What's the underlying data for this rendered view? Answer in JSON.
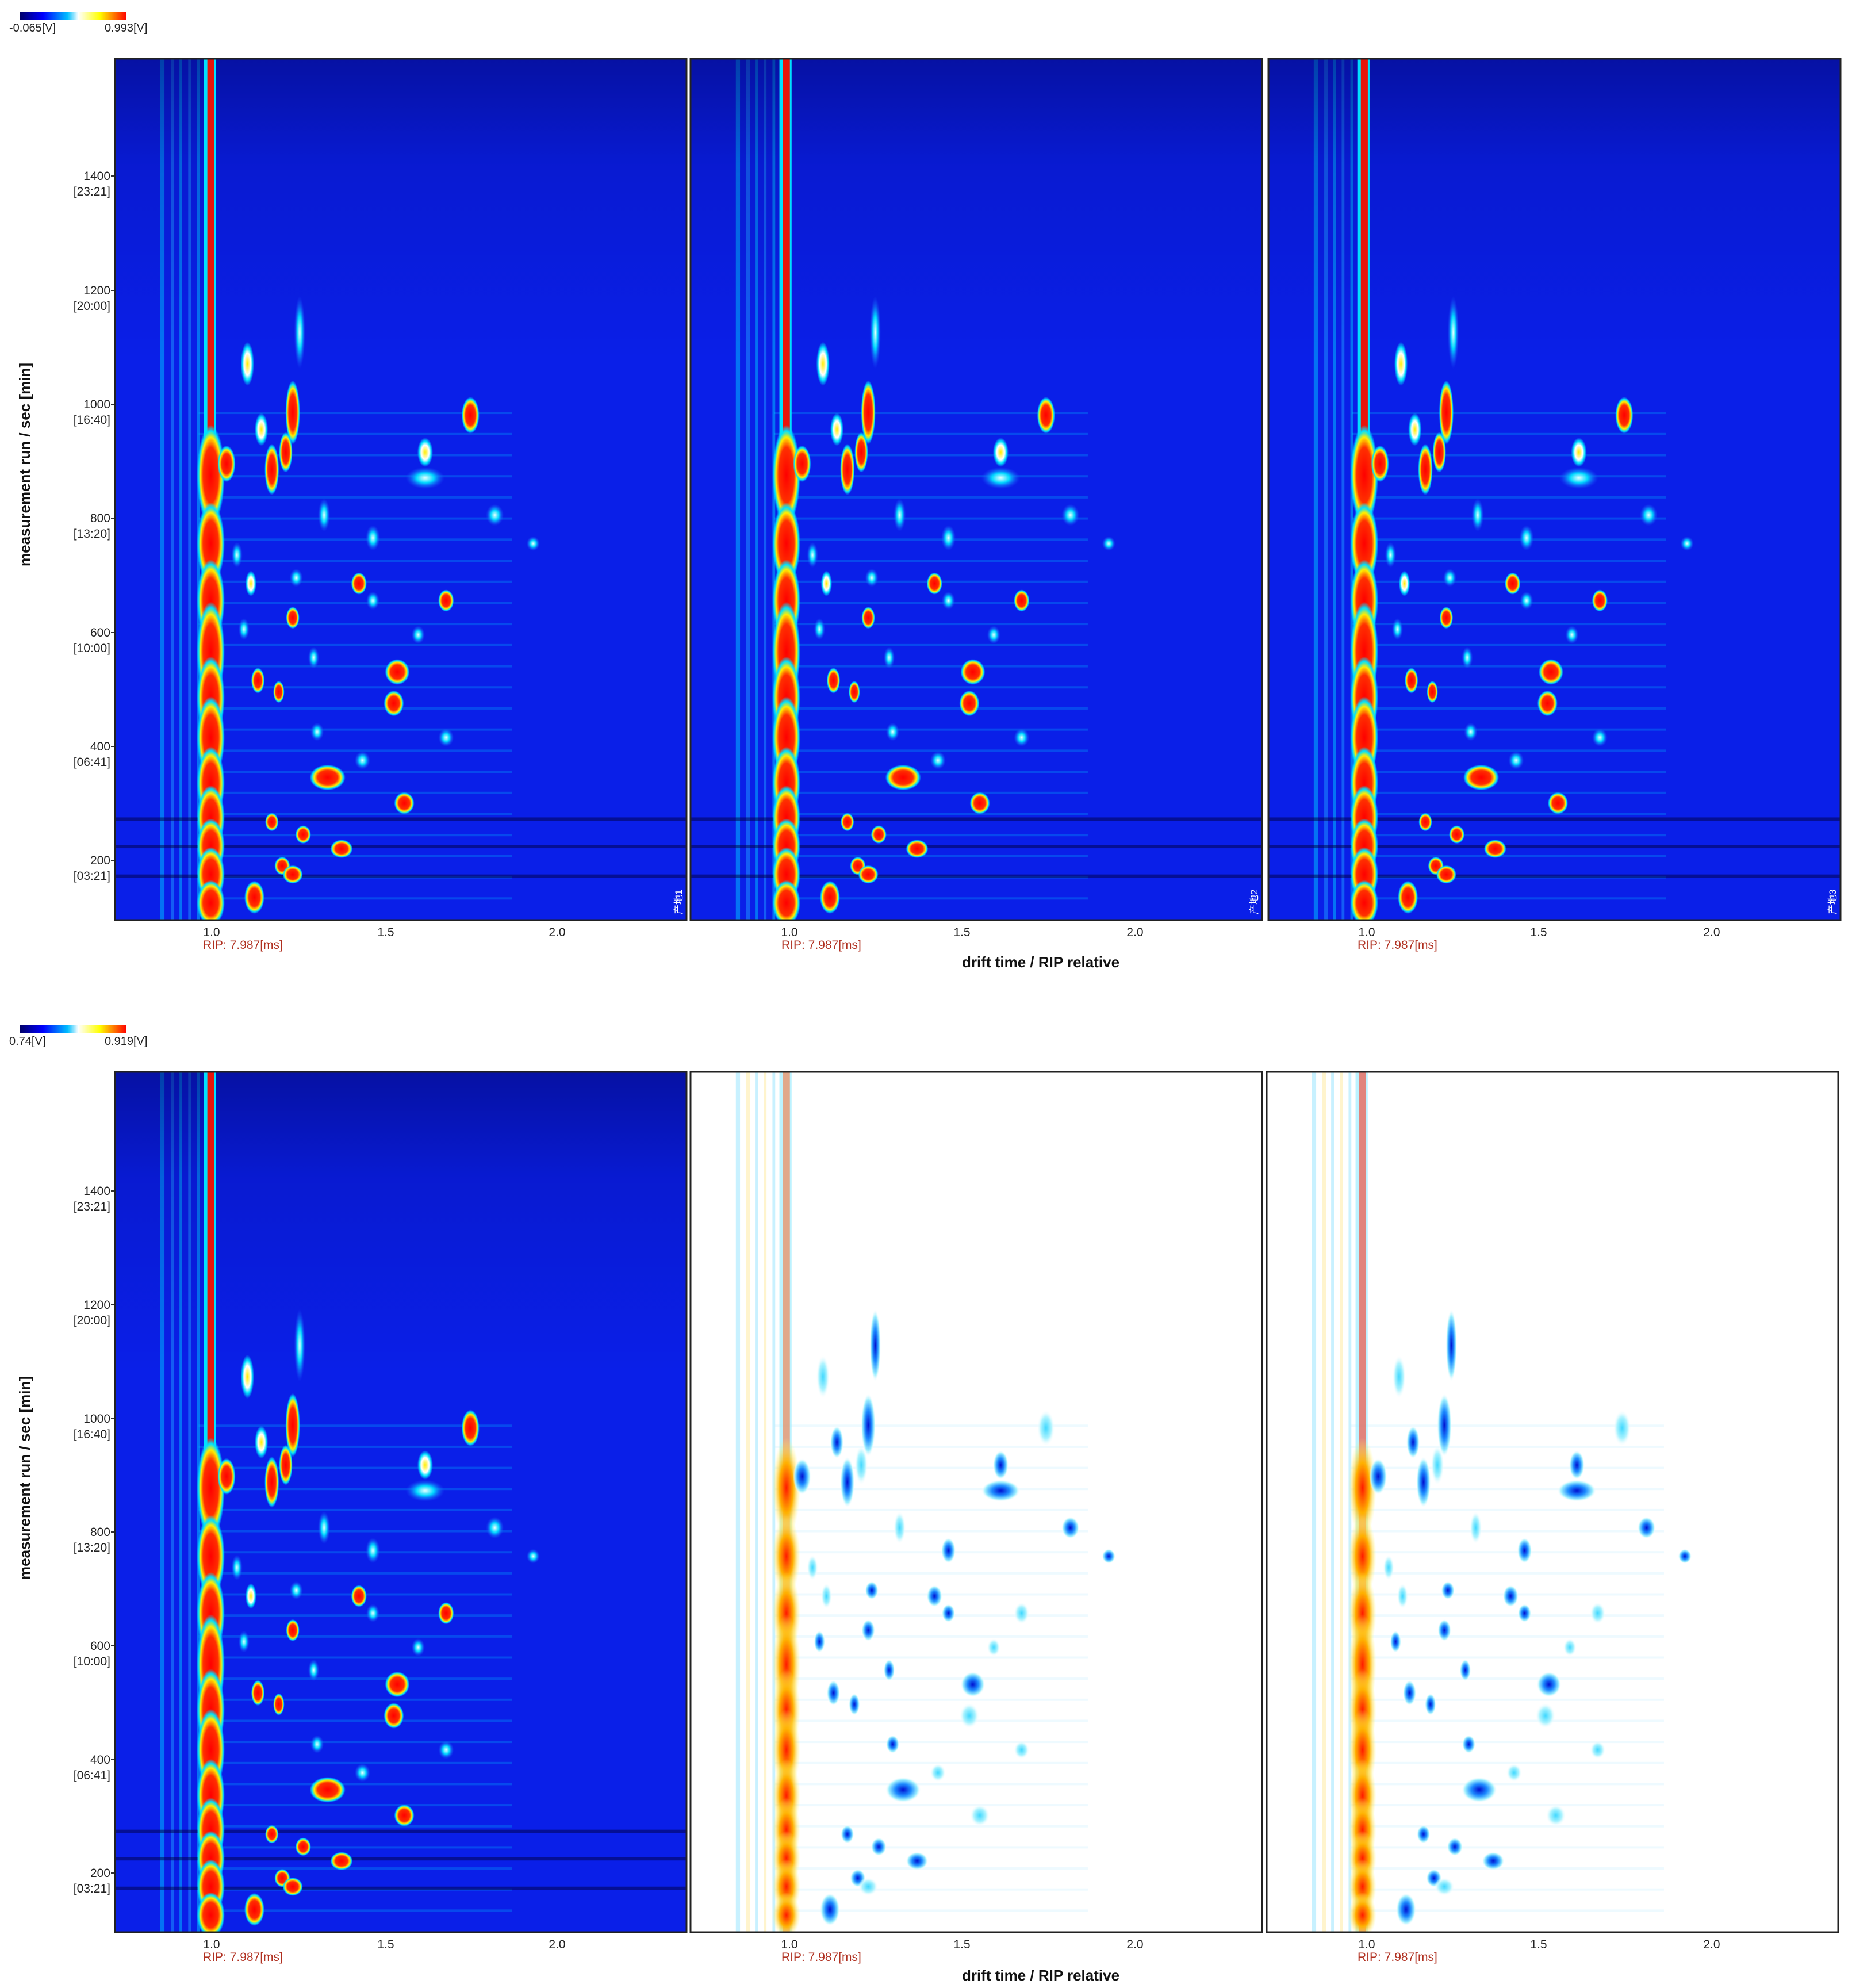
{
  "chart_data": [
    {
      "type": "heatmap",
      "section": "top",
      "mode": "absolute",
      "colorscale": {
        "min_label": "-0.065[V]",
        "max_label": "0.993[V]",
        "colors": [
          "#000066",
          "#0000ff",
          "#00bfff",
          "#ffffff",
          "#ffff00",
          "#ff0000"
        ]
      },
      "xlabel": "drift time / RIP relative",
      "ylabel": "measurement run / sec [min]",
      "rip_label": "RIP: 7.987[ms]",
      "xlim": [
        0.73,
        2.37
      ],
      "ylim": [
        100,
        1610
      ],
      "xticks": [
        {
          "v": 1.0,
          "label": "1.0"
        },
        {
          "v": 1.5,
          "label": "1.5"
        },
        {
          "v": 2.0,
          "label": "2.0"
        }
      ],
      "yticks": [
        {
          "v": 200,
          "label": "200",
          "time": "[03:21]"
        },
        {
          "v": 400,
          "label": "400",
          "time": "[06:41]"
        },
        {
          "v": 600,
          "label": "600",
          "time": "[10:00]"
        },
        {
          "v": 800,
          "label": "800",
          "time": "[13:20]"
        },
        {
          "v": 1000,
          "label": "1000",
          "time": "[16:40]"
        },
        {
          "v": 1200,
          "label": "1200",
          "time": "[20:00]"
        },
        {
          "v": 1400,
          "label": "1400",
          "time": "[23:21]"
        }
      ],
      "panels": [
        {
          "sample_label": "产地1",
          "background": "#0a1fe8",
          "rip_color": "#e8140a"
        },
        {
          "sample_label": "产地2",
          "background": "#0a1fe8",
          "rip_color": "#e8140a"
        },
        {
          "sample_label": "产地3",
          "background": "#0a1fe8",
          "rip_color": "#e8140a"
        }
      ]
    },
    {
      "type": "heatmap",
      "section": "bottom",
      "mode": "difference (reference: first panel)",
      "colorscale": {
        "min_label": "0.74[V]",
        "max_label": "0.919[V]",
        "colors": [
          "#000066",
          "#0000ff",
          "#00bfff",
          "#ffffff",
          "#ffff00",
          "#ff0000"
        ]
      },
      "xlabel": "drift time / RIP relative",
      "ylabel": "measurement run / sec [min]",
      "rip_label": "RIP: 7.987[ms]",
      "xlim": [
        0.73,
        2.37
      ],
      "ylim": [
        100,
        1610
      ],
      "xticks": [
        {
          "v": 1.0,
          "label": "1.0"
        },
        {
          "v": 1.5,
          "label": "1.5"
        },
        {
          "v": 2.0,
          "label": "2.0"
        }
      ],
      "yticks": [
        {
          "v": 200,
          "label": "200",
          "time": "[03:21]"
        },
        {
          "v": 400,
          "label": "400",
          "time": "[06:41]"
        },
        {
          "v": 600,
          "label": "600",
          "time": "[10:00]"
        },
        {
          "v": 800,
          "label": "800",
          "time": "[13:20]"
        },
        {
          "v": 1000,
          "label": "1000",
          "time": "[16:40]"
        },
        {
          "v": 1200,
          "label": "1200",
          "time": "[20:00]"
        },
        {
          "v": 1400,
          "label": "1400",
          "time": "[23:21]"
        }
      ],
      "panels": [
        {
          "role": "reference",
          "background": "#0a1fe8",
          "rip_color": "#e8140a"
        },
        {
          "role": "difference",
          "background": "#ffffff",
          "rip_color": "#ff6a2a"
        },
        {
          "role": "difference",
          "background": "#ffffff",
          "rip_color": "#ff2a10"
        }
      ]
    }
  ],
  "peaks": [
    [
      1.005,
      880,
      0.025,
      55,
      "red"
    ],
    [
      1.005,
      760,
      0.025,
      45,
      "red"
    ],
    [
      1.005,
      660,
      0.025,
      45,
      "red"
    ],
    [
      1.005,
      570,
      0.025,
      55,
      "red"
    ],
    [
      1.005,
      490,
      0.025,
      45,
      "red"
    ],
    [
      1.005,
      420,
      0.025,
      45,
      "red"
    ],
    [
      1.005,
      340,
      0.025,
      40,
      "red"
    ],
    [
      1.005,
      280,
      0.025,
      35,
      "red"
    ],
    [
      1.005,
      230,
      0.025,
      30,
      "red"
    ],
    [
      1.005,
      180,
      0.025,
      30,
      "red"
    ],
    [
      1.005,
      130,
      0.025,
      25,
      "red"
    ],
    [
      1.05,
      900,
      0.016,
      20,
      "red"
    ],
    [
      1.11,
      1075,
      0.012,
      24,
      "yellow"
    ],
    [
      1.15,
      960,
      0.012,
      18,
      "yellow"
    ],
    [
      1.18,
      890,
      0.013,
      28,
      "red"
    ],
    [
      1.22,
      920,
      0.012,
      22,
      "red"
    ],
    [
      1.24,
      990,
      0.013,
      35,
      "red"
    ],
    [
      1.26,
      1130,
      0.01,
      40,
      "cyan"
    ],
    [
      1.75,
      985,
      0.016,
      20,
      "red"
    ],
    [
      1.62,
      920,
      0.014,
      16,
      "yellow"
    ],
    [
      1.62,
      875,
      0.035,
      12,
      "cyan"
    ],
    [
      1.33,
      810,
      0.011,
      18,
      "cyan"
    ],
    [
      1.82,
      810,
      0.016,
      12,
      "cyan"
    ],
    [
      1.43,
      690,
      0.014,
      12,
      "red"
    ],
    [
      1.68,
      660,
      0.014,
      12,
      "red"
    ],
    [
      1.24,
      630,
      0.012,
      12,
      "red"
    ],
    [
      1.54,
      535,
      0.022,
      14,
      "red"
    ],
    [
      1.53,
      480,
      0.018,
      14,
      "red"
    ],
    [
      1.14,
      520,
      0.012,
      14,
      "red"
    ],
    [
      1.34,
      350,
      0.032,
      14,
      "red"
    ],
    [
      1.56,
      305,
      0.018,
      12,
      "red"
    ],
    [
      1.18,
      272,
      0.012,
      10,
      "red"
    ],
    [
      1.21,
      195,
      0.014,
      10,
      "red"
    ],
    [
      1.24,
      180,
      0.018,
      10,
      "red"
    ],
    [
      1.13,
      140,
      0.018,
      18,
      "red"
    ],
    [
      1.38,
      225,
      0.02,
      10,
      "red"
    ],
    [
      1.68,
      420,
      0.014,
      10,
      "cyan"
    ],
    [
      1.31,
      430,
      0.012,
      10,
      "cyan"
    ],
    [
      1.2,
      500,
      0.01,
      12,
      "red"
    ],
    [
      1.08,
      740,
      0.01,
      14,
      "cyan"
    ],
    [
      1.47,
      770,
      0.013,
      14,
      "cyan"
    ],
    [
      1.93,
      760,
      0.012,
      8,
      "cyan"
    ],
    [
      1.12,
      690,
      0.01,
      14,
      "yellow"
    ],
    [
      1.3,
      560,
      0.01,
      12,
      "cyan"
    ],
    [
      1.1,
      610,
      0.01,
      12,
      "cyan"
    ],
    [
      1.44,
      380,
      0.014,
      10,
      "cyan"
    ],
    [
      1.27,
      250,
      0.014,
      10,
      "red"
    ],
    [
      1.47,
      660,
      0.012,
      10,
      "cyan"
    ],
    [
      1.6,
      600,
      0.012,
      10,
      "cyan"
    ],
    [
      1.25,
      700,
      0.012,
      10,
      "cyan"
    ]
  ]
}
